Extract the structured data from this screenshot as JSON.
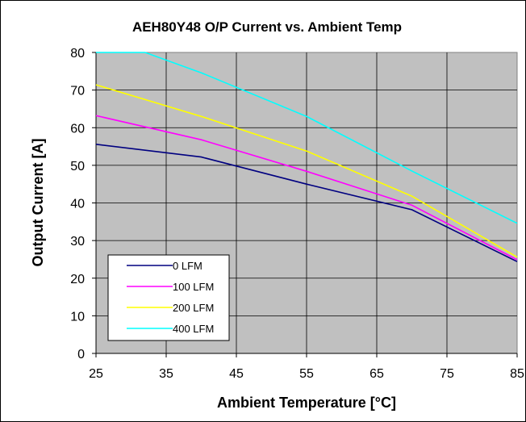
{
  "chart_data": {
    "type": "line",
    "title": "AEH80Y48 O/P Current vs. Ambient Temp",
    "xlabel": "Ambient Temperature [°C]",
    "ylabel": "Output Current [A]",
    "xlim": [
      25,
      85
    ],
    "ylim": [
      0,
      80
    ],
    "xticks": [
      25,
      35,
      45,
      55,
      65,
      75,
      85
    ],
    "yticks": [
      0,
      10,
      20,
      30,
      40,
      50,
      60,
      70,
      80
    ],
    "grid": true,
    "plot_background": "#c0c0c0",
    "legend_position": "bottom-left",
    "series": [
      {
        "name": "0 LFM",
        "color": "#000080",
        "points": [
          [
            25,
            55.6
          ],
          [
            40,
            52.2
          ],
          [
            55,
            45
          ],
          [
            70,
            38.2
          ],
          [
            85,
            24.4
          ]
        ]
      },
      {
        "name": "100 LFM",
        "color": "#ff00ff",
        "points": [
          [
            25,
            63.2
          ],
          [
            40,
            56.8
          ],
          [
            55,
            48.4
          ],
          [
            70,
            39.4
          ],
          [
            85,
            24.9
          ]
        ]
      },
      {
        "name": "200 LFM",
        "color": "#ffff00",
        "points": [
          [
            25,
            71.4
          ],
          [
            40,
            63
          ],
          [
            55,
            53.8
          ],
          [
            70,
            41.8
          ],
          [
            85,
            25.6
          ]
        ]
      },
      {
        "name": "400 LFM",
        "color": "#00ffff",
        "points": [
          [
            25,
            80
          ],
          [
            32,
            80
          ],
          [
            40,
            74.6
          ],
          [
            55,
            63
          ],
          [
            70,
            48.5
          ],
          [
            85,
            34.6
          ]
        ]
      }
    ]
  }
}
